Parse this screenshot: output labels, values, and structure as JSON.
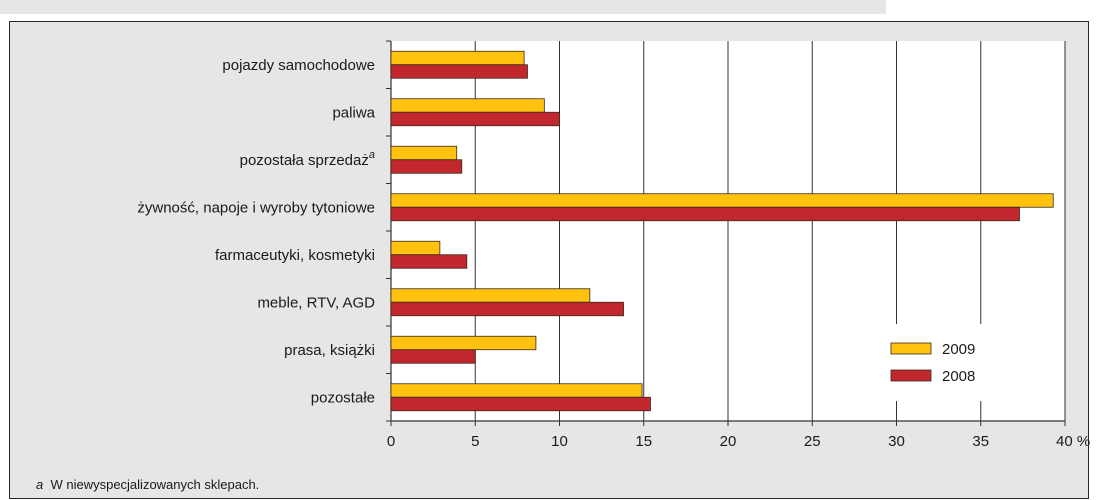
{
  "chart_data": {
    "type": "bar",
    "orientation": "horizontal",
    "categories": [
      "pojazdy samochodowe",
      "paliwa",
      "pozostała sprzedaż",
      "żywność, napoje i wyroby  tytoniowe",
      "farmaceutyki, kosmetyki",
      "meble, RTV, AGD",
      "prasa, książki",
      "pozostałe"
    ],
    "category_marks": [
      "",
      "",
      "a",
      "",
      "",
      "",
      "",
      ""
    ],
    "series": [
      {
        "name": "2009",
        "color": "#ffc20e",
        "values": [
          7.9,
          9.1,
          3.9,
          39.3,
          2.9,
          11.8,
          8.6,
          14.9
        ]
      },
      {
        "name": "2008",
        "color": "#c1272d",
        "values": [
          8.1,
          10.0,
          4.2,
          37.3,
          4.5,
          13.8,
          5.0,
          15.4
        ]
      }
    ],
    "xlim": [
      0,
      40
    ],
    "xticks": [
      "0",
      "5",
      "10",
      "15",
      "20",
      "25",
      "30",
      "35",
      "40 %"
    ],
    "grid": true,
    "legend_position": "bottom-right"
  },
  "footnote": {
    "mark": "a",
    "text": "W niewyspecjalizowanych sklepach."
  }
}
